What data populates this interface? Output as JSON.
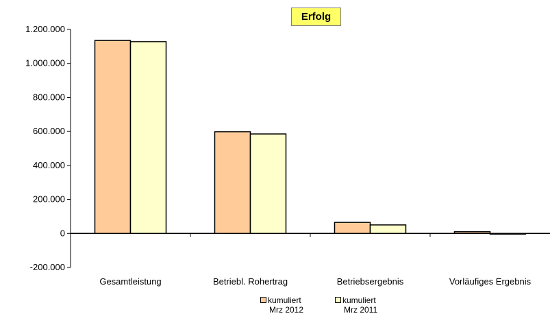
{
  "chart_data": {
    "type": "bar",
    "title": "Erfolg",
    "categories": [
      "Gesamtleistung",
      "Betriebl. Rohertrag",
      "Betriebsergebnis",
      "Vorläufiges Ergebnis"
    ],
    "series": [
      {
        "name": "kumuliert Mrz 2012",
        "name_line1": "kumuliert",
        "name_line2": "Mrz 2012",
        "color": "#ffcc99",
        "values": [
          1135000,
          598000,
          65000,
          10000
        ]
      },
      {
        "name": "kumuliert Mrz 2011",
        "name_line1": "kumuliert",
        "name_line2": "Mrz 2011",
        "color": "#ffffcc",
        "values": [
          1128000,
          585000,
          50000,
          -4000
        ]
      }
    ],
    "ylim": [
      -200000,
      1200000
    ],
    "yticks": [
      -200000,
      0,
      200000,
      400000,
      600000,
      800000,
      1000000,
      1200000
    ],
    "ytick_labels": [
      "-200.000",
      "0",
      "200.000",
      "400.000",
      "600.000",
      "800.000",
      "1.000.000",
      "1.200.000"
    ],
    "grid": false,
    "legend_position": "bottom"
  }
}
